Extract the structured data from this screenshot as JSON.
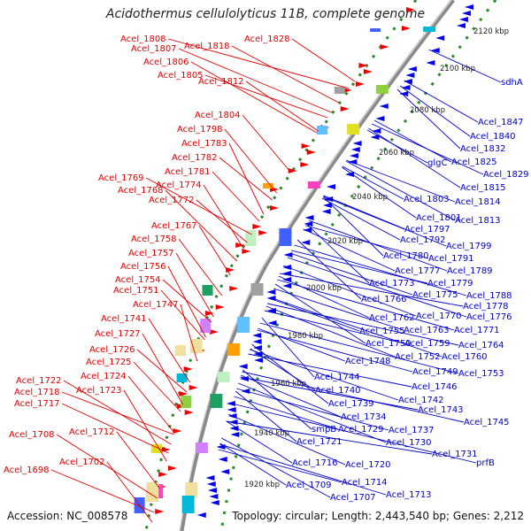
{
  "title": "Acidothermus cellulolyticus 11B, complete genome",
  "footer": {
    "accession": "Accession: NC_008578",
    "summary": "Topology: circular; Length: 2,443,540 bp; Genes: 2,212"
  },
  "colors": {
    "forward_label": "#e00000",
    "reverse_label": "#0000c8",
    "backbone": "#888888",
    "tick": "#2a8a2a"
  },
  "kbp_ticks": [
    "2120 kbp",
    "2100 kbp",
    "2080 kbp",
    "2060 kbp",
    "2040 kbp",
    "2020 kbp",
    "2000 kbp",
    "1980 kbp",
    "1960 kbp",
    "1940 kbp",
    "1920 kbp"
  ],
  "left_labels": [
    "Acel_1828",
    "Acel_1808",
    "Acel_1818",
    "Acel_1807",
    "Acel_1806",
    "Acel_1805",
    "Acel_1812",
    "Acel_1804",
    "Acel_1798",
    "Acel_1783",
    "Acel_1782",
    "Acel_1781",
    "Acel_1769",
    "Acel_1774",
    "Acel_1768",
    "Acel_1772",
    "Acel_1767",
    "Acel_1758",
    "Acel_1757",
    "Acel_1756",
    "Acel_1754",
    "Acel_1751",
    "Acel_1747",
    "Acel_1741",
    "Acel_1727",
    "Acel_1726",
    "Acel_1725",
    "Acel_1724",
    "Acel_1722",
    "Acel_1723",
    "Acel_1718",
    "Acel_1717",
    "Acel_1712",
    "Acel_1708",
    "Acel_1702",
    "Acel_1698"
  ],
  "right_labels": [
    "sdhA",
    "Acel_1847",
    "Acel_1840",
    "Acel_1832",
    "glgC",
    "Acel_1825",
    "Acel_1829",
    "Acel_1815",
    "Acel_1803",
    "Acel_1814",
    "Acel_1801",
    "Acel_1813",
    "Acel_1797",
    "Acel_1792",
    "Acel_1799",
    "Acel_1780",
    "Acel_1791",
    "Acel_1777",
    "Acel_1789",
    "Acel_1773",
    "Acel_1779",
    "Acel_1775",
    "Acel_1788",
    "Acel_1766",
    "Acel_1778",
    "Acel_1762",
    "Acel_1770",
    "Acel_1776",
    "Acel_1755",
    "Acel_1763",
    "Acel_1771",
    "Acel_1750",
    "Acel_1759",
    "Acel_1764",
    "Acel_1752",
    "Acel_1760",
    "Acel_1748",
    "Acel_1749",
    "Acel_1753",
    "Acel_1744",
    "Acel_1746",
    "Acel_1740",
    "Acel_1742",
    "Acel_1739",
    "Acel_1743",
    "Acel_1734",
    "Acel_1745",
    "smpB",
    "Acel_1729",
    "Acel_1737",
    "Acel_1721",
    "Acel_1730",
    "Acel_1731",
    "Acel_1716",
    "Acel_1720",
    "prfB",
    "Acel_1714",
    "Acel_1709",
    "Acel_1713",
    "Acel_1707"
  ]
}
